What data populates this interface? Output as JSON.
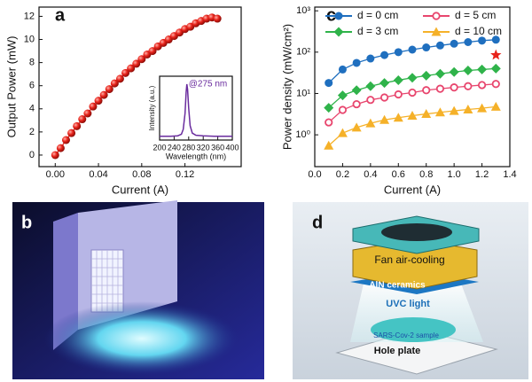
{
  "panel_labels": [
    "a",
    "b",
    "c",
    "d"
  ],
  "chart_data": [
    {
      "type": "line",
      "xlabel": "Current (A)",
      "ylabel": "Output Power (mW)",
      "x": [
        0,
        0.005,
        0.01,
        0.015,
        0.02,
        0.025,
        0.03,
        0.035,
        0.04,
        0.045,
        0.05,
        0.055,
        0.06,
        0.065,
        0.07,
        0.075,
        0.08,
        0.085,
        0.09,
        0.095,
        0.1,
        0.105,
        0.11,
        0.115,
        0.12,
        0.125,
        0.13,
        0.135,
        0.14,
        0.145,
        0.15
      ],
      "values": [
        0,
        0.6,
        1.3,
        1.9,
        2.5,
        3.1,
        3.6,
        4.2,
        4.7,
        5.2,
        5.7,
        6.2,
        6.6,
        7.1,
        7.5,
        7.9,
        8.3,
        8.7,
        9.0,
        9.4,
        9.7,
        10.0,
        10.3,
        10.6,
        10.9,
        11.1,
        11.4,
        11.6,
        11.8,
        11.9,
        11.8
      ],
      "color": "#e8231b",
      "marker": "sphere",
      "xlim": [
        -0.015,
        0.172
      ],
      "ylim": [
        -1,
        12.8
      ],
      "xticks": [
        {
          "value": 0,
          "label": "0.00"
        },
        {
          "value": 0.04,
          "label": "0.04"
        },
        {
          "value": 0.08,
          "label": "0.08"
        },
        {
          "value": 0.12,
          "label": "0.12"
        }
      ],
      "yticks": [
        0,
        2,
        4,
        6,
        8,
        10,
        12
      ],
      "inset": {
        "type": "line",
        "xlabel": "Wavelength (nm)",
        "ylabel": "Intensity (a.u.)",
        "annotation": "@275 nm",
        "x": [
          200,
          230,
          250,
          260,
          265,
          270,
          273,
          275,
          277,
          280,
          284,
          290,
          300,
          320,
          350,
          400
        ],
        "values": [
          0.02,
          0.02,
          0.03,
          0.06,
          0.15,
          0.45,
          0.85,
          1.0,
          0.9,
          0.55,
          0.22,
          0.08,
          0.04,
          0.03,
          0.02,
          0.02
        ],
        "color": "#6a2c9e",
        "xlim": [
          200,
          400
        ],
        "ylim": [
          -0.05,
          1.15
        ],
        "xticks": [
          200,
          240,
          280,
          320,
          360,
          400
        ]
      }
    },
    {
      "type": "line",
      "xlabel": "Current (A)",
      "ylabel": "Power density (mW/cm²)",
      "log_y": true,
      "legend": "top",
      "x": [
        0.1,
        0.2,
        0.3,
        0.4,
        0.5,
        0.6,
        0.7,
        0.8,
        0.9,
        1.0,
        1.1,
        1.2,
        1.3
      ],
      "series": [
        {
          "name": "d = 0 cm",
          "color": "#1f6fbf",
          "marker": "circle",
          "values": [
            18,
            38,
            55,
            70,
            85,
            100,
            115,
            130,
            145,
            160,
            175,
            190,
            200
          ]
        },
        {
          "name": "d = 5 cm",
          "color": "#e8466e",
          "marker": "open-circle",
          "values": [
            2,
            4,
            5.5,
            7,
            8,
            9.5,
            10.5,
            12,
            13,
            14,
            15,
            16,
            17
          ]
        },
        {
          "name": "d = 3 cm",
          "color": "#2fb34a",
          "marker": "diamond",
          "values": [
            4.5,
            9,
            12,
            15,
            18,
            21,
            24,
            27,
            30,
            33,
            36,
            38,
            40
          ]
        },
        {
          "name": "d = 10 cm",
          "color": "#f5b129",
          "marker": "triangle",
          "values": [
            0.55,
            1.1,
            1.5,
            1.9,
            2.3,
            2.6,
            2.9,
            3.2,
            3.5,
            3.8,
            4.1,
            4.4,
            4.8
          ]
        }
      ],
      "star": {
        "x": 1.3,
        "y": 85,
        "color": "#e8231b"
      },
      "xlim": [
        0,
        1.4
      ],
      "ylim": [
        0.17,
        1230
      ],
      "xticks": [
        {
          "value": 0,
          "label": "0.0"
        },
        {
          "value": 0.2,
          "label": "0.2"
        },
        {
          "value": 0.4,
          "label": "0.4"
        },
        {
          "value": 0.6,
          "label": "0.6"
        },
        {
          "value": 0.8,
          "label": "0.8"
        },
        {
          "value": 1,
          "label": "1.0"
        },
        {
          "value": 1.2,
          "label": "1.2"
        },
        {
          "value": 1.4,
          "label": "1.4"
        }
      ],
      "yticks": [
        {
          "value": 1,
          "label": "10⁰"
        },
        {
          "value": 10,
          "label": "10¹"
        },
        {
          "value": 100,
          "label": "10²"
        },
        {
          "value": 1000,
          "label": "10³"
        }
      ]
    }
  ],
  "diagram": {
    "labels": [
      "Fan air-cooling",
      "AlN ceramics",
      "UVC light",
      "SARS-Cov-2 sample",
      "Hole plate"
    ]
  }
}
